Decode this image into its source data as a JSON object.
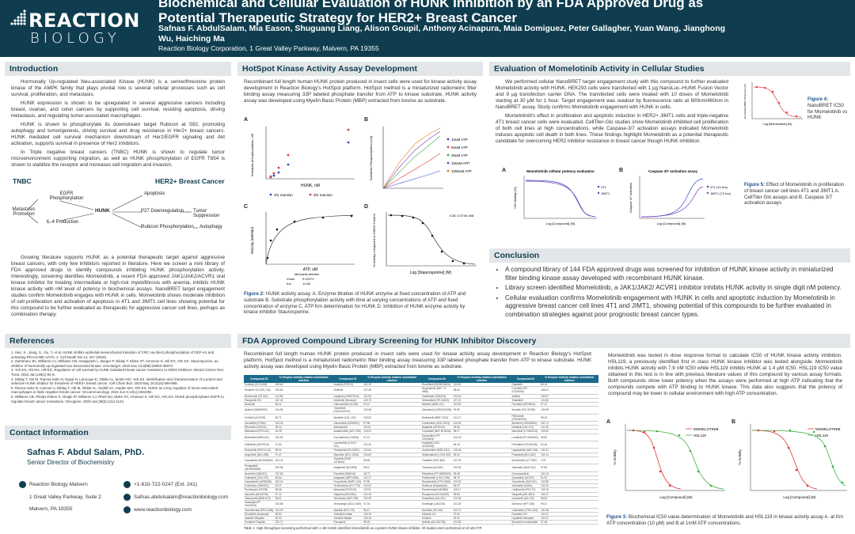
{
  "header": {
    "logo_line1": "REACTION",
    "logo_line2": "BIOLOGY",
    "title": "Biochemical and Cellular Evaluation of HUNK Inhibition by an FDA Approved Drug as Potential Therapeutic Strategy for HER2+ Breast Cancer",
    "authors": "Safnas F. AbdulSalam, Mia Eason, Shuguang Liang, Alison Goupil, Anthony Acinapura, Maia Domiguez, Peter Gallagher, Yuan Wang, Jianghong Wu, Haiching Ma",
    "affiliation": "Reaction Biology Corporation, 1 Great Valley Parkway, Malvern, PA 19355"
  },
  "intro": {
    "heading": "Introduction",
    "p1": "Hormonally Up-regulated Neu-associated Kinase (HUNK) is a serine/threonine protein kinase of the AMPK family that plays pivotal role is several cellular processes such as cell survival, proliferation, and metastasis.",
    "p2": "HUNK expression is shown to be upregulated in several aggressive cancers including breast, ovarian, and colon cancers by supporting cell survival, resisting apoptosis, driving metastasis, and regulating tumor-associated macrophages.",
    "p3": "HUNK is shown to phosphorylate its downstream target Rubicon at S92, promoting autophagy and tumorigenesis, driving survival and drug resistance in Her2+ breast cancers. HUNK mediated cell survival mechanism downstream of Her2/EGFR signaling and Akt activation, supports survival in presence of Her2 inhibitors.",
    "p4": "In Triple negative breast cancers (TNBC) HUNK is shown to regulate tumor microenvironment supporting migration, as well as HUNK phosphorylation of EGFR T654 is shown to stabilize the receptor and increases cell migration and invasion.",
    "p5": "Growing literature supports HUNK as a potential therapeutic target against aggressive breast cancers, with only few inhibitors reported in literature. Here we screen a mini library of FDA approved drugs to identify compounds inhibiting HUNK phosphorylation activity. Interestingly, screening identifies Momelotinib, a recent FDA approved JAK1/JAK2/ACVR1 oral kinase inhibitor for treating intermediate or high-risk myelofibrosis with anemia, inhibits HUNK kinase activity with nM level of potency in biochemical assays. NanoBRET target engagement studies confirm Momelotinib engages with HUNK in cells. Momelotinib shows moderate inhibition of cell proliferation and activation of apoptosis in 4T1 and JIMT1 cell lines showing potential for this compound to be further evaluated as therapeutic for aggressive cancer cell lines, perhaps as combination therapy."
  },
  "pathway": {
    "tnbc": "TNBC",
    "her2": "HER2+ Breast Cancer",
    "egfr": "EGFR Phosphorylation",
    "metastasis": "Metastasis Promotion",
    "il4": "IL-4 Production",
    "hunk": "HUNK",
    "apoptosis": "Apoptosis",
    "p27": "P27 Downregulation",
    "tumor": "Tumor Suppression",
    "rubicon": "Rubicon Phosphorylation",
    "autophagy": "Autophagy"
  },
  "references": {
    "heading": "References",
    "items": [
      "1. Han, X., Jiang, S., Gu, Y. et al. HUNK inhibits epithelial-mesenchymal transition of CRC via direct phosphorylation of GEF-H1 and activating RhoA/LIMK-1/CFL-1. Cell Death Dis 14, 327 (2023).",
      "2. Zambrano JN, Williams CJ, Williams CB, Hedgepeth L, Burger P, Dilday T, Eblen ST, Armeson K, Hill EG, Yeh ES. Staurosporine, an inhibitor of hormonally up-regulated neu-associated kinase. Oncotarget. 2018 Nov 13;9(89):35962-35973.",
      "3. Yeh ES, Abt MA, Hill EG. Regulation of cell survival by HUNK mediated breast cancer resistance to HER2 inhibitors. Breast Cancer Res Treat. 2015 Jan;149(1):91-8.",
      "4. Dilday T, Abt M, Ramos-Solis N, Dayal N, Larocque E, Oblak AL, Sintim HO, Yeh ES. Identification and characterization of a potent and selective HUNK inhibitor for treatment of HER2+ breast cancer. Cell Chem Biol. 2024 May 16;31(5):969-986.",
      "5. Ramos Solis N, Cannon A, Dilday T, Abt M, Oblak AL, Sudolf AC, Kaplan MH, Yeh ES. HUNK as a key regulator of tumor-associated macrophages in triple negative breast cancer. Oncoimmunology. 2024 Jun 5;13(1):2364382.",
      "6. Williams CB, Phelps-Polirer K, Dingle IP, Williams CJ, Rhett MJ, Eblen ST, Armeson K, Hill EG, Yeh ES. HUNK phosphorylates EGFR to regulate breast cancer metastasis. Oncogene. 2020 Jan;39(5):1112-1124."
    ]
  },
  "contact": {
    "heading": "Contact Information",
    "name": "Safnas F. Abdul Salam, PhD.",
    "role": "Senior Director of Biochemistry",
    "org": "Reaction Biology Malvern",
    "address1": "1 Great Valley Parkway, Suite 2",
    "address2": "Malvern, PA 19355",
    "phone": "+1-610-722-0247 (Ext. 241)",
    "email": "Safnas.abdulsalam@reactionbiology.com",
    "web": "www.reactionbiology.com"
  },
  "hotspot": {
    "heading": "HotSpot Kinase Activity Assay Development",
    "text": "Recombinant full length human HUNK protein produced in insect cells were used for kinase activity assay development in Reaction Biology's HotSpot platform. HotSpot method is a miniaturized radiometric filter binding assay measuring 33P labeled phosphate transfer from ATP to kinase substrate. HUNK activity assay was developed using Myelin Basic Protein (MBP) extracted from bovine as substrate.",
    "fig_a": "A",
    "fig_b": "B",
    "fig_c": "C",
    "fig_d": "D",
    "caption_label": "Figure 2:",
    "caption": "HUNK activity assay. A. Enzyme titration of HUNK enzyme at fixed concentration of ATP and substrate B. Substrate phosphorylation activity with time at varying concentrations of ATP and fixed concentration of enzyme C. ATP Km determination for HUNK D. Inhibition of HUNK enzyme activity by kinase inhibitor Staurosporine.",
    "a_legend": [
      "1hr reaction",
      "2hr reaction"
    ],
    "b_legend": [
      "10uM ATP",
      "50uM ATP",
      "25uM ATP",
      "100uM ATP",
      "1000uM ATP"
    ],
    "a_xlabel": "HUNK, nM",
    "a_ylabel": "Substrate phosphorylation, nM",
    "b_ylabel": "Substrate Phosphorylation (nM)",
    "c_xlabel": "ATP, uM",
    "c_ylabel": "Velocity (nM/min)",
    "d_xlabel": "Log [Staurosporine] (M)",
    "d_ylabel": "% Activity compared to DMSO Control",
    "d_ic50": "IC50",
    "d_ic50_val": "2.674e-008",
    "c_table": [
      "Michaelis-Menten",
      "Vmax",
      "Km",
      "0.02073",
      "11.88"
    ]
  },
  "cellular": {
    "heading": "Evaluation of Momelotinib Activity in Cellular Studies",
    "p1": "We performed cellular NanoBRET target engagement study with this compound to further evaluated Momelotinib activity with HUNK. HEK293 cells were transfected with 1 µg NanoLuc–HUNK Fusion Vector and 9 µg transfection carrier DNA. The transfected cells were treated with 10 doses of Momelotinib starting at 30 µM for 1 hour. Target engagement was readout by fluorescence ratio at 600nm/460nm in NanoBRET assay. Study confirms Momelotinib engagement with HUNK in cells.",
    "p2": "Momelotinib's effect in proliferation and apoptotic induction in HER2+ JIMT1 cells and triple-negative 4T1 breast cancer cells were evaluated. CellTiter-Glo studies show Momelotinib inhibited cell proliferation of both cell lines at high concentrations, while Caspase-3/7 activation assays indicated Momelotinib induces apoptotic cell death in both lines. These findings highlight Momelotinib as a potential therapeutic candidate for overcoming HER2 inhibitor resistance in breast cancer though HUNK inhibition.",
    "fig4_label": "Figure 4:",
    "fig4_text": "NanoBRET IC50 for Momelotinib vs HUNK",
    "fig5_label": "Figure 5:",
    "fig5_text": "Effect of Momelotinib in proliferation of breast cancer cell lines 4T1 and JIMT1 A. CellTiter Glo assays and B. Caspase 3/7 activation assays",
    "f4_xlabel": "Log [Momelotinib] (M)",
    "f4_ylabel": "Normalized BRET Response (%)",
    "f5a_title": "Momelotinib cellular potency evaluation",
    "f5b_title": "Caspase 3/7 activation assay",
    "f5_xlabel": "Log [Compound] (M)",
    "f5a_ylabel": "Cell Viability (%)",
    "f5b_ylabel": "Caspase 3/7 activation",
    "f5a_legend": [
      "4T1",
      "JIMT1"
    ],
    "f5b_legend": [
      "4T1 (24 hrs)",
      "JIMT1 (72 hrs)"
    ],
    "f5_A": "A",
    "f5_B": "B"
  },
  "conclusion": {
    "heading": "Conclusion",
    "items": [
      "A compound library of 144 FDA approved drugs was screened for inhibition of HUNK kinase activity in miniaturized filter binding kinase assay developed with recombinant HUNK kinase.",
      "Library screen identified Momelotinib, a JAK1/JAK2/ ACVR1 inhibitor inhibits HUNK activity in single digit nM potency.",
      "Cellular evaluation confirms Momelotinib engagement with HUNK in cells and apoptotic induction by Momelotinib in aggressive breast cancer cell lines 4T1 and JIMT1, showing potential of this compounds to be further evaluated in combination strategies against poor prognostic breast cancer types."
    ]
  },
  "screening": {
    "heading": "FDA Approved Compound Library Screening for HUNK Inhibitor Discovery",
    "text": "Recombinant full length human HUNK protein produced in insect cells were used for kinase activity assay development in Reaction Biology's HotSpot platform. HotSpot method is a miniaturized radiometric filter binding assay measuring 33P labeled phosphate transfer from ATP to kinase substrate. HUNK activity assay was developed using Myelin Basic Protein (MBP) extracted from bovine as substrate.",
    "right_text": "Momelotinib was tested in dose response format to calculate IC50 of HUNK kinase activity inhibition. HSL119, a previously identified first in class HUNK kinase inhibitor was tested alongside. Momelotinib inhibits HUNK activity with 7.9 nM IC50 while HSL119 inhibits HUNK at 1.4 µM IC50. HSL119 IC50 value obtained in this test is in line with previous literature values of this compound by various assay formats. Both compounds show lower potency when the assays were performed at high ATP indicating that the compounds compete with ATP binding to HUNK kinase. This data also suggests that the potency of compound may be lower in cellular environment with high ATP concentration.",
    "table_headers": [
      "Compound ID",
      "% Enzyme Activity relative uninhibited reaction",
      "Compound ID",
      "% Enzyme Activity relative uninhibited reaction",
      "Compound ID",
      "% Enzyme Activity relative uninhibited reaction",
      "Compound ID",
      "% Enzyme Activity relative uninhibited reaction"
    ],
    "table_rows": [
      [
        "Sunitinib (SU11248)",
        "108.60",
        "Imatinib (STI571)",
        "102.19",
        "Ruxolitinib (INCB018424)",
        "104.60",
        "Dasatinib",
        "88.16"
      ],
      [
        "Erlotinib HCl (OSI-744)",
        "100.84",
        "Gefitinib",
        "107.38",
        "Regorafenib (BAY 73-4506)",
        "98.64",
        "Crizotinib (PF-02341066)",
        "105.01"
      ],
      [
        "Bortezomib (PS-341)",
        "112.38",
        "Lapatinib (GW572016)",
        "101.96",
        "Vandetanib (ZD6474)",
        "104.33",
        "Axitinib",
        "109.57"
      ],
      [
        "Pazopanib HCl",
        "102.44",
        "Sorafenib (Nexavar)",
        "103.79",
        "Vemurafenib (PLX4032)",
        "107.21",
        "Tofacitinib",
        "101.66"
      ],
      [
        "Bosutinib",
        "95.22",
        "Cabozantinib (XL184)",
        "99.37",
        "Nilotinib (AMN-107)",
        "102.82",
        "Ponatinib (AP24534)",
        "97.12"
      ],
      [
        "Afatinib (BIBW2992)",
        "104.55",
        "Trametinib (GSK1120212)",
        "100.48",
        "Dabrafenib (GSK2118436)",
        "99.95",
        "Ibrutinib (PCI-32765)",
        "103.08"
      ],
      [
        "Ceritinib (LDK378)",
        "96.71",
        "Idelalisib (CAL-101)",
        "105.62",
        "Nintedanib (BIBF 1120)",
        "101.17",
        "Palbociclib (PD0332991)",
        "98.43"
      ],
      [
        "Lenvatinib (E7080)",
        "103.26",
        "Osimertinib (AZD9291)",
        "97.58",
        "Cobimetinib (GDC-0973)",
        "104.91",
        "Alectinib (CH5424802)",
        "100.72"
      ],
      [
        "Ribociclib (LEE011)",
        "99.14",
        "Abemaciclib",
        "102.67",
        "Brigatinib (AP26113)",
        "95.84",
        "Neratinib (HKI-272)",
        "101.39"
      ],
      [
        "Midostaurin (PKC412)",
        "34.28",
        "Acalabrutinib (ACP-196)",
        "106.03",
        "Copanlisib (BAY 80-6946)",
        "98.27",
        "Baricitinib (LY3009104)",
        "103.52"
      ],
      [
        "Binimetinib (MEK162)",
        "100.09",
        "Encorafenib (LGX818)",
        "97.21",
        "Dacomitinib (PF-00299804)",
        "104.78",
        "Lorlatinib (PF-6463922)",
        "99.65"
      ],
      [
        "Gilteritinib (ASP2215)",
        "41.53",
        "Larotrectinib (LOXO-101)",
        "102.35",
        "Erdafitinib (JNJ-42756493)",
        "96.18",
        "Fedratinib (TG101348)",
        "62.40"
      ],
      [
        "Entrectinib (RXDX-101)",
        "98.92",
        "Pexidartinib (PLX3397)",
        "101.84",
        "Zanubrutinib (BGB-3111)",
        "105.26",
        "Upadacitinib (ABT-494)",
        "100.31"
      ],
      [
        "Avapritinib (BLU-285)",
        "97.47",
        "Ripretinib (DCC-2618)",
        "103.69",
        "Selpercatinib (LOXO-292)",
        "99.02",
        "Pralsetinib (BLU-667)",
        "102.14"
      ],
      [
        "Capmatinib (INCB28060)",
        "104.33",
        "Tepotinib (EMD 1214063)",
        "96.55",
        "Tucatinib (ONT-380)",
        "101.78",
        "Momelotinib (CYT387)",
        "2.09"
      ],
      [
        "Pemigatinib (INCB054828)",
        "100.56",
        "Infigratinib (BGJ398)",
        "98.11",
        "Tivozanib (AV-951)",
        "103.04",
        "Sotorasib (AMG 510)",
        "97.89"
      ],
      [
        "Asciminib (ABL001)",
        "102.63",
        "Pacritinib (SB1518)",
        "18.72",
        "Ritlecitinib (PF-06651600)",
        "99.48",
        "Deucravacitinib",
        "104.15"
      ],
      [
        "Futibatinib (TAS-120)",
        "96.84",
        "Adagrasib (MRTX849)",
        "101.27",
        "Pirtobrutinib (LOXO-305)",
        "98.76",
        "Quizartinib (AC220)",
        "91.33"
      ],
      [
        "Capivasertib (AZD5363)",
        "103.41",
        "Fruquintinib (HMPL-013)",
        "97.95",
        "Repotrectinib (TPX-0005)",
        "100.62",
        "Tovorafenib (DAY101)",
        "102.88"
      ],
      [
        "Everolimus (RAD001)",
        "99.37",
        "Temsirolimus (CCI-779)",
        "104.52",
        "Sirolimus (Rapamycin)",
        "96.29",
        "Vorinostat (SAHA)",
        "101.03"
      ],
      [
        "Romidepsin (FK228)",
        "98.58",
        "Belinostat (PXD101)",
        "102.91",
        "Panobinostat (LBH589)",
        "100.17",
        "Carfilzomib (PR-171)",
        "103.76"
      ],
      [
        "Ixazomib (MLN2238)",
        "97.12",
        "Olaparib (AZD2281)",
        "101.45",
        "Rucaparib (AG-014699)",
        "99.83",
        "Niraparib (MK-4827)",
        "104.27"
      ],
      [
        "Talazoparib (BMN 673)",
        "96.61",
        "Venetoclax (ABT-199)",
        "102.39",
        "Enasidenib (AG-221)",
        "100.94",
        "Ivosidenib (AG-120)",
        "98.05"
      ],
      [
        "Glasdegib (PF-04449913)",
        "103.58",
        "Vismodegib (GDC-0449)",
        "97.34",
        "Sonidegib (LDE225)",
        "101.62",
        "Selinexor (KPT-330)",
        "99.21"
      ],
      [
        "Tazemetostat (EPZ-6438)",
        "104.09",
        "Alpelisib (BYL719)",
        "96.47",
        "Duvelisib (IPI-145)",
        "102.73",
        "Umbralisib (TGR-1202)",
        "100.38"
      ],
      [
        "Ruxolitinib phosphate",
        "98.84",
        "Tofacitinib citrate",
        "103.15",
        "Nilotinib HCl",
        "97.66",
        "Ponatinib HCl",
        "101.91"
      ],
      [
        "Imatinib Mesylate",
        "99.53",
        "Sunitinib Malate",
        "104.44",
        "Erlotinib",
        "96.92",
        "Lapatinib Ditosylate",
        "102.57"
      ],
      [
        "Sorafenib Tosylate",
        "100.71",
        "Pazopanib",
        "98.26",
        "Axitinib (AG-013736)",
        "103.83",
        "Bosutinib monohydrate",
        "97.48"
      ],
      [
        "Vandetanib",
        "101.19",
        "Cabozantinib malate",
        "99.74",
        "Regorafenib monohydrate",
        "104.36",
        "Crizotinib",
        "96.13"
      ],
      [
        "Dasatinib monohydrate",
        "102.48",
        "Trametinib DMSO",
        "100.85",
        "Dabrafenib mesylate",
        "98.37",
        "Ibrutinib",
        "103.29"
      ]
    ],
    "table_caption": "Table 1: High throughput screening performed with 1 uM HUNK identifies Momelotinib as a potent HUNK kinase inhibitor. All studies were performed at 10 uM ATP.",
    "fig3_label": "Figure 3:",
    "fig3_text": "Biochemical IC50 value determination of Momelotinib and HSL119 in kinase activity assay A. at Km ATP concentration (10 µM) and B.at 1mM ATP concentrations.",
    "f3_xlabel": "Log [Compound] (M)",
    "f3_ylabel": "% Activity",
    "f3_legend": [
      "MOMELOTINIB",
      "HSL119"
    ],
    "f3_A": "A",
    "f3_B": "B"
  },
  "colors": {
    "header_bg": "#0f3d4f",
    "section_bg": "#e2e6e8",
    "accent": "#1a4f8a",
    "red": "#e03a3a",
    "green": "#3cb043",
    "blue": "#3050c8"
  }
}
